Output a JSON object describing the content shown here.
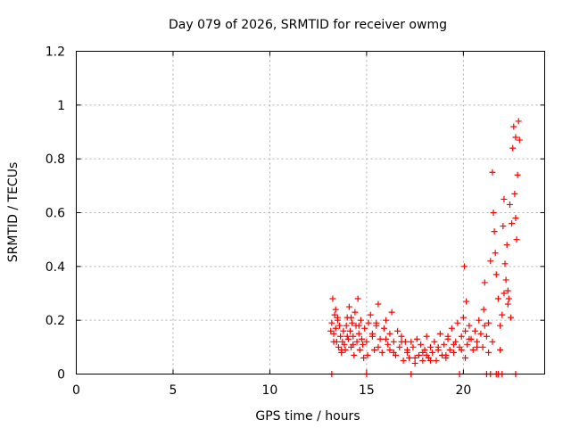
{
  "chart_data": {
    "type": "scatter",
    "title": "Day 079 of 2026, SRMTID for receiver owmg",
    "xlabel": "GPS time / hours",
    "ylabel": "SRMTID / TECUs",
    "xlim": [
      0,
      24.2
    ],
    "ylim": [
      0,
      1.2
    ],
    "x_ticks": [
      0,
      5,
      10,
      15,
      20
    ],
    "x_tick_labels": [
      "0",
      "5",
      "10",
      "15",
      "20"
    ],
    "y_ticks": [
      0,
      0.2,
      0.4,
      0.6,
      0.8,
      1,
      1.2
    ],
    "y_tick_labels": [
      "0",
      "0.2",
      "0.4",
      "0.6",
      "0.8",
      "1",
      "1.2"
    ],
    "grid": true,
    "marker": "plus",
    "series": [
      {
        "name": "SRMTID",
        "color": "#ff0000",
        "x": [
          13.2,
          13.25,
          13.3,
          13.35,
          13.4,
          13.45,
          13.5,
          13.55,
          13.6,
          13.65,
          13.7,
          13.75,
          13.8,
          13.85,
          13.9,
          13.95,
          14.0,
          14.05,
          14.1,
          14.15,
          14.2,
          14.25,
          14.3,
          14.35,
          14.4,
          14.45,
          14.5,
          14.55,
          14.6,
          14.65,
          14.7,
          14.75,
          14.8,
          14.85,
          14.9,
          15.0,
          15.1,
          15.2,
          15.3,
          15.4,
          15.5,
          15.6,
          15.7,
          15.8,
          15.9,
          16.0,
          16.1,
          16.2,
          16.3,
          16.4,
          16.5,
          16.6,
          16.7,
          16.8,
          16.9,
          17.0,
          17.1,
          17.2,
          17.4,
          17.5,
          17.6,
          17.7,
          17.8,
          17.9,
          18.0,
          18.1,
          18.2,
          18.3,
          18.4,
          18.5,
          18.6,
          18.7,
          18.8,
          18.9,
          19.0,
          19.1,
          19.2,
          19.3,
          19.4,
          19.5,
          19.6,
          19.7,
          19.8,
          19.9,
          20.0,
          20.05,
          20.1,
          20.15,
          20.2,
          20.3,
          20.4,
          20.5,
          20.6,
          20.7,
          20.8,
          20.9,
          21.0,
          21.05,
          21.1,
          21.2,
          21.3,
          21.4,
          21.5,
          21.55,
          21.6,
          21.65,
          21.7,
          21.8,
          21.9,
          22.0,
          22.05,
          22.1,
          22.15,
          22.2,
          22.25,
          22.3,
          22.35,
          22.4,
          22.45,
          22.5,
          22.55,
          22.6,
          22.65,
          22.7,
          22.75,
          22.8,
          22.85,
          22.9,
          13.15,
          13.3,
          13.5,
          13.7,
          14.0,
          14.3,
          14.6,
          15.05,
          15.3,
          15.6,
          16.0,
          16.4,
          16.8,
          17.1,
          17.5,
          17.9,
          18.3,
          18.7,
          19.1,
          19.5,
          19.9,
          20.3,
          20.7,
          21.1,
          21.5,
          21.9,
          22.3,
          22.7,
          13.4,
          14.2,
          15.5,
          16.2,
          17.3,
          18.1,
          19.2,
          20.1,
          21.3,
          22.1,
          13.2,
          15.0,
          17.3,
          19.8,
          21.2,
          21.4,
          21.7,
          21.8,
          22.0,
          22.7
        ],
        "y": [
          0.19,
          0.28,
          0.15,
          0.22,
          0.17,
          0.12,
          0.2,
          0.1,
          0.18,
          0.14,
          0.08,
          0.12,
          0.16,
          0.11,
          0.09,
          0.18,
          0.21,
          0.13,
          0.25,
          0.16,
          0.1,
          0.19,
          0.14,
          0.07,
          0.23,
          0.18,
          0.12,
          0.28,
          0.15,
          0.09,
          0.2,
          0.13,
          0.11,
          0.06,
          0.17,
          0.12,
          0.19,
          0.22,
          0.14,
          0.09,
          0.18,
          0.26,
          0.13,
          0.08,
          0.17,
          0.2,
          0.11,
          0.15,
          0.23,
          0.12,
          0.07,
          0.16,
          0.1,
          0.14,
          0.05,
          0.12,
          0.08,
          0.06,
          0.1,
          0.04,
          0.13,
          0.07,
          0.11,
          0.05,
          0.09,
          0.14,
          0.06,
          0.1,
          0.08,
          0.12,
          0.05,
          0.09,
          0.15,
          0.07,
          0.11,
          0.06,
          0.13,
          0.09,
          0.17,
          0.08,
          0.12,
          0.19,
          0.1,
          0.14,
          0.21,
          0.4,
          0.16,
          0.27,
          0.11,
          0.18,
          0.13,
          0.09,
          0.16,
          0.12,
          0.2,
          0.15,
          0.1,
          0.24,
          0.34,
          0.14,
          0.19,
          0.42,
          0.75,
          0.6,
          0.53,
          0.45,
          0.37,
          0.28,
          0.18,
          0.22,
          0.55,
          0.65,
          0.41,
          0.35,
          0.48,
          0.31,
          0.28,
          0.63,
          0.21,
          0.56,
          0.84,
          0.92,
          0.67,
          0.58,
          0.5,
          0.74,
          0.94,
          0.87,
          0.16,
          0.12,
          0.21,
          0.09,
          0.14,
          0.11,
          0.18,
          0.07,
          0.15,
          0.1,
          0.13,
          0.08,
          0.12,
          0.09,
          0.06,
          0.08,
          0.05,
          0.1,
          0.07,
          0.11,
          0.09,
          0.13,
          0.1,
          0.18,
          0.12,
          0.09,
          0.26,
          0.88,
          0.24,
          0.21,
          0.19,
          0.09,
          0.12,
          0.07,
          0.14,
          0.06,
          0.08,
          0.3,
          0.0,
          0.0,
          0.0,
          0.0,
          0.0,
          0.0,
          0.0,
          0.0,
          0.0,
          0.0
        ]
      }
    ]
  }
}
